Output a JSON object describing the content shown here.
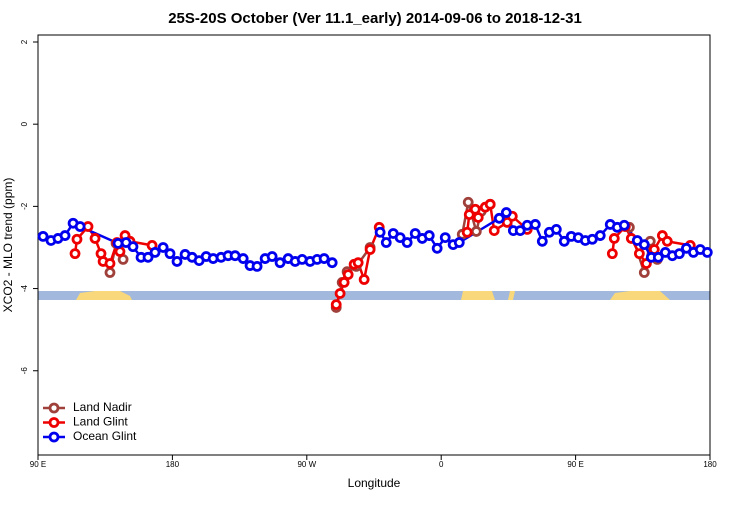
{
  "chart_data": {
    "type": "line",
    "title": "25S-20S October (Ver 11.1_early)   2014-09-06 to 2018-12-31",
    "xlabel": "Longitude",
    "ylabel": "XCO2 - MLO trend (ppm)",
    "xlim": [
      90,
      540
    ],
    "ylim": [
      -8.05,
      2.17
    ],
    "xticks": [
      {
        "value": 90,
        "label": "90 E"
      },
      180,
      {
        "value": 270,
        "label": "90 W"
      },
      {
        "value": 360,
        "label": "0"
      },
      {
        "value": 450,
        "label": "90 E"
      },
      {
        "value": 540,
        "label": "180"
      }
    ],
    "yticks": [
      2,
      0,
      -2,
      -4,
      -6
    ],
    "legend": "bottom-left",
    "series": [
      {
        "name": "Land Nadir",
        "color": "#a0403a",
        "x": [
          138.2,
          142.3,
          147,
          null,
          289.7,
          293.7,
          297,
          303.1,
          312.4,
          null,
          374.1,
          378.1,
          383.5,
          386.8,
          392.8,
          null,
          486,
          496,
          500,
          504.7
        ],
        "values": [
          -3.61,
          -2.9,
          -3.29,
          null,
          -4.46,
          -3.85,
          -3.59,
          -3.46,
          -3.0,
          null,
          -2.68,
          -1.9,
          -2.61,
          -2.12,
          -1.95,
          null,
          -2.51,
          -3.61,
          -2.85,
          -3.29
        ]
      },
      {
        "name": "Land Glint",
        "color": "#ee0000",
        "x": [
          114.8,
          116.1,
          123.5,
          128.2,
          132.2,
          133.6,
          138.2,
          142.9,
          144.9,
          148.3,
          151.6,
          166.4,
          null,
          289.7,
          292.3,
          295,
          297.7,
          301.7,
          304.4,
          308.4,
          312.4,
          318.5,
          null,
          377.4,
          378.8,
          382.8,
          384.8,
          389.5,
          392.8,
          395.5,
          404.2,
          407.6,
          417.6,
          null,
          474.6,
          475.9,
          483.3,
          487.3,
          492.7,
          497.4,
          502.7,
          508.1,
          511.4,
          526.8
        ],
        "values": [
          -3.15,
          -2.8,
          -2.49,
          -2.78,
          -3.15,
          -3.34,
          -3.39,
          -2.88,
          -3.1,
          -2.71,
          -2.85,
          -2.95,
          null,
          -4.39,
          -4.12,
          -3.85,
          -3.66,
          -3.41,
          -3.37,
          -3.78,
          -3.05,
          -2.51,
          null,
          -2.63,
          -2.2,
          -2.07,
          -2.27,
          -2.02,
          -1.95,
          -2.59,
          -2.39,
          -2.24,
          -2.56,
          null,
          -3.15,
          -2.78,
          -2.49,
          -2.78,
          -3.15,
          -3.39,
          -3.05,
          -2.71,
          -2.85,
          -2.95
        ]
      },
      {
        "name": "Ocean Glint",
        "color": "#0000ee",
        "x": [
          93.4,
          98.7,
          103.4,
          108.1,
          113.5,
          118.2,
          143.6,
          149,
          153.6,
          159,
          163.7,
          168.4,
          173.8,
          178.4,
          183.1,
          188.5,
          193.2,
          197.9,
          202.6,
          207.3,
          212.6,
          217.3,
          222,
          227.4,
          232,
          236.7,
          242.1,
          246.8,
          252.1,
          257.5,
          262.2,
          266.9,
          272.2,
          276.9,
          281.6,
          287,
          null,
          319.1,
          323.2,
          327.9,
          332.5,
          337.2,
          342.6,
          347.3,
          352,
          357.3,
          362.7,
          368,
          372.1,
          398.9,
          403.6,
          408.3,
          412.9,
          417.6,
          423,
          427.7,
          432.4,
          437.1,
          442.4,
          447.1,
          451.8,
          456.5,
          461.2,
          466.5,
          473.2,
          477.9,
          482.6,
          491.3,
          496,
          500.7,
          505.4,
          510.1,
          514.8,
          519.5,
          524.2,
          528.9,
          533.5,
          538.2
        ],
        "values": [
          -2.73,
          -2.83,
          -2.78,
          -2.71,
          -2.41,
          -2.49,
          -2.9,
          -2.88,
          -2.98,
          -3.24,
          -3.24,
          -3.12,
          -3.0,
          -3.15,
          -3.34,
          -3.17,
          -3.24,
          -3.32,
          -3.22,
          -3.27,
          -3.24,
          -3.2,
          -3.2,
          -3.27,
          -3.44,
          -3.46,
          -3.27,
          -3.22,
          -3.37,
          -3.27,
          -3.34,
          -3.29,
          -3.34,
          -3.29,
          -3.27,
          -3.37,
          null,
          -2.63,
          -2.88,
          -2.66,
          -2.76,
          -2.88,
          -2.66,
          -2.78,
          -2.71,
          -3.02,
          -2.76,
          -2.93,
          -2.88,
          -2.29,
          -2.15,
          -2.59,
          -2.59,
          -2.46,
          -2.44,
          -2.85,
          -2.63,
          -2.56,
          -2.85,
          -2.73,
          -2.76,
          -2.83,
          -2.8,
          -2.71,
          -2.44,
          -2.51,
          -2.46,
          -2.83,
          -2.93,
          -3.24,
          -3.24,
          -3.12,
          -3.2,
          -3.15,
          -3.02,
          -3.12,
          -3.05,
          -3.12
        ]
      }
    ]
  }
}
